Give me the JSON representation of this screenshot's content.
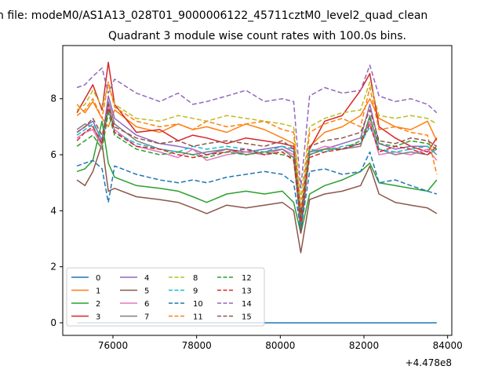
{
  "figure": {
    "suptitle": "n file: modeM0/AS1A13_028T01_9000006122_45711cztM0_level2_quad_clean",
    "offset_label": "+4.478e8"
  },
  "chart_data": {
    "type": "line",
    "title": "Quadrant 3 module wise count rates with 100.0s bins.",
    "xlabel": "",
    "ylabel": "",
    "x_offset": 447800000,
    "xlim": [
      74800,
      84100
    ],
    "ylim": [
      -0.45,
      9.9
    ],
    "xticks": [
      76000,
      78000,
      80000,
      82000,
      84000
    ],
    "xtick_labels": [
      "76000",
      "78000",
      "80000",
      "82000",
      "84000"
    ],
    "yticks": [
      0,
      2,
      4,
      6,
      8
    ],
    "ytick_labels": [
      "0",
      "2",
      "4",
      "6",
      "8"
    ],
    "grid": false,
    "legend": {
      "placement": "lower-left",
      "columns": 4
    },
    "x": [
      75140,
      75330,
      75520,
      75740,
      75890,
      76040,
      76560,
      77120,
      77560,
      77910,
      78240,
      78720,
      79180,
      79620,
      80050,
      80320,
      80490,
      80700,
      81060,
      81480,
      81920,
      82140,
      82360,
      82750,
      83120,
      83520,
      83740
    ],
    "series": [
      {
        "name": "0",
        "color": "#1f77b4",
        "dash": "solid",
        "values": [
          0,
          0,
          0,
          0,
          0,
          0,
          0,
          0,
          0,
          0,
          0,
          0,
          0,
          0,
          0,
          0,
          0,
          0,
          0,
          0,
          0,
          0,
          0,
          0,
          0,
          0,
          0
        ]
      },
      {
        "name": "1",
        "color": "#ff7f0e",
        "dash": "solid",
        "values": [
          7.8,
          7.5,
          7.9,
          7.3,
          7.0,
          7.6,
          7.0,
          6.8,
          7.1,
          6.9,
          7.0,
          6.8,
          7.1,
          6.9,
          6.6,
          6.4,
          3.9,
          6.3,
          6.8,
          7.0,
          7.4,
          8.0,
          7.3,
          7.0,
          6.9,
          7.2,
          6.5
        ]
      },
      {
        "name": "2",
        "color": "#2ca02c",
        "dash": "solid",
        "values": [
          5.4,
          5.5,
          5.8,
          7.2,
          5.7,
          5.2,
          4.9,
          4.8,
          4.7,
          4.5,
          4.3,
          4.6,
          4.7,
          4.6,
          4.7,
          4.3,
          3.2,
          4.6,
          4.9,
          5.1,
          5.4,
          5.7,
          5.0,
          4.9,
          4.8,
          4.7,
          5.1
        ]
      },
      {
        "name": "3",
        "color": "#d62728",
        "dash": "solid",
        "values": [
          7.5,
          8.0,
          8.5,
          7.6,
          9.3,
          7.8,
          6.8,
          6.9,
          6.5,
          6.7,
          6.6,
          6.4,
          6.6,
          6.5,
          6.4,
          6.3,
          3.2,
          6.2,
          7.2,
          7.4,
          8.3,
          8.9,
          7.0,
          6.6,
          6.3,
          6.1,
          6.6
        ]
      },
      {
        "name": "4",
        "color": "#9467bd",
        "dash": "solid",
        "values": [
          6.8,
          7.0,
          7.2,
          6.5,
          8.1,
          7.3,
          6.7,
          6.4,
          6.3,
          6.2,
          6.0,
          6.2,
          6.1,
          6.2,
          6.3,
          6.1,
          3.6,
          6.0,
          6.2,
          6.4,
          6.6,
          7.8,
          6.4,
          6.2,
          6.3,
          6.3,
          6.0
        ]
      },
      {
        "name": "5",
        "color": "#8c564b",
        "dash": "solid",
        "values": [
          5.1,
          4.9,
          5.4,
          6.4,
          4.7,
          4.8,
          4.5,
          4.4,
          4.3,
          4.1,
          3.9,
          4.2,
          4.1,
          4.2,
          4.3,
          4.0,
          2.5,
          4.4,
          4.6,
          4.7,
          4.9,
          5.6,
          4.6,
          4.3,
          4.2,
          4.1,
          3.9
        ]
      },
      {
        "name": "6",
        "color": "#e377c2",
        "dash": "solid",
        "values": [
          6.6,
          6.8,
          6.9,
          6.3,
          7.7,
          6.9,
          6.3,
          6.1,
          5.9,
          6.2,
          5.8,
          6.0,
          6.1,
          6.0,
          6.2,
          6.0,
          3.5,
          6.1,
          6.3,
          6.2,
          6.4,
          7.2,
          6.0,
          6.1,
          6.0,
          6.2,
          5.8
        ]
      },
      {
        "name": "7",
        "color": "#7f7f7f",
        "dash": "solid",
        "values": [
          6.9,
          7.1,
          7.0,
          6.4,
          7.9,
          7.1,
          6.5,
          6.2,
          6.1,
          6.0,
          6.1,
          6.2,
          6.0,
          6.1,
          6.2,
          5.9,
          3.4,
          6.1,
          6.2,
          6.2,
          6.3,
          7.4,
          6.2,
          6.0,
          6.1,
          6.0,
          6.2
        ]
      },
      {
        "name": "8",
        "color": "#bcbd22",
        "dash": "dashed",
        "values": [
          7.6,
          7.8,
          8.3,
          7.7,
          8.5,
          7.8,
          7.3,
          7.2,
          7.4,
          7.3,
          7.2,
          7.4,
          7.3,
          7.2,
          7.1,
          7.0,
          4.4,
          7.0,
          7.3,
          7.5,
          7.6,
          8.6,
          7.4,
          7.3,
          7.4,
          7.3,
          7.1
        ]
      },
      {
        "name": "9",
        "color": "#17becf",
        "dash": "dashed",
        "values": [
          6.7,
          6.9,
          7.1,
          6.6,
          7.6,
          6.8,
          6.4,
          6.2,
          6.1,
          6.3,
          6.2,
          6.3,
          6.2,
          6.1,
          6.3,
          6.2,
          3.7,
          6.2,
          6.1,
          6.3,
          6.4,
          7.0,
          6.2,
          6.1,
          6.2,
          6.3,
          6.0
        ]
      },
      {
        "name": "10",
        "color": "#1f77b4",
        "dash": "dashed",
        "values": [
          5.6,
          5.7,
          5.8,
          5.5,
          4.3,
          5.6,
          5.3,
          5.1,
          5.0,
          5.1,
          5.0,
          5.2,
          5.3,
          5.4,
          5.3,
          5.0,
          3.3,
          5.4,
          5.5,
          5.3,
          5.4,
          6.1,
          5.0,
          5.1,
          4.9,
          4.7,
          4.6
        ]
      },
      {
        "name": "11",
        "color": "#ff7f0e",
        "dash": "dashed",
        "values": [
          7.4,
          7.6,
          8.0,
          7.3,
          8.6,
          7.7,
          7.2,
          7.0,
          7.1,
          6.9,
          7.2,
          7.0,
          7.1,
          7.2,
          6.9,
          6.8,
          4.0,
          6.8,
          7.1,
          7.3,
          7.0,
          8.4,
          6.9,
          7.0,
          6.8,
          6.7,
          5.3
        ]
      },
      {
        "name": "12",
        "color": "#2ca02c",
        "dash": "dashed",
        "values": [
          6.3,
          6.5,
          6.7,
          6.2,
          7.5,
          6.7,
          6.2,
          6.0,
          6.1,
          6.0,
          5.9,
          6.1,
          6.0,
          6.1,
          6.0,
          5.9,
          3.8,
          6.0,
          6.2,
          6.2,
          6.5,
          7.3,
          6.4,
          6.3,
          6.5,
          6.4,
          6.2
        ]
      },
      {
        "name": "13",
        "color": "#d62728",
        "dash": "dashed",
        "values": [
          6.5,
          6.8,
          7.0,
          6.4,
          7.8,
          6.8,
          6.3,
          6.2,
          6.0,
          5.9,
          6.0,
          6.1,
          6.2,
          6.0,
          6.1,
          5.8,
          3.6,
          5.9,
          6.1,
          6.2,
          6.4,
          7.1,
          6.1,
          6.3,
          6.2,
          6.0,
          6.3
        ]
      },
      {
        "name": "14",
        "color": "#9467bd",
        "dash": "dashed",
        "values": [
          8.4,
          8.5,
          8.8,
          9.1,
          8.2,
          8.7,
          8.2,
          7.9,
          8.2,
          7.8,
          7.9,
          8.1,
          8.3,
          7.9,
          8.0,
          7.9,
          4.8,
          8.1,
          8.4,
          8.2,
          8.3,
          9.2,
          8.1,
          7.9,
          8.0,
          7.8,
          7.5
        ]
      },
      {
        "name": "15",
        "color": "#8c564b",
        "dash": "dashed",
        "values": [
          6.8,
          7.0,
          7.3,
          6.7,
          7.6,
          7.0,
          6.6,
          6.4,
          6.5,
          6.3,
          6.4,
          6.5,
          6.4,
          6.3,
          6.5,
          6.2,
          3.9,
          6.3,
          6.5,
          6.6,
          6.8,
          7.6,
          6.5,
          6.4,
          6.6,
          6.5,
          6.3
        ]
      }
    ]
  }
}
